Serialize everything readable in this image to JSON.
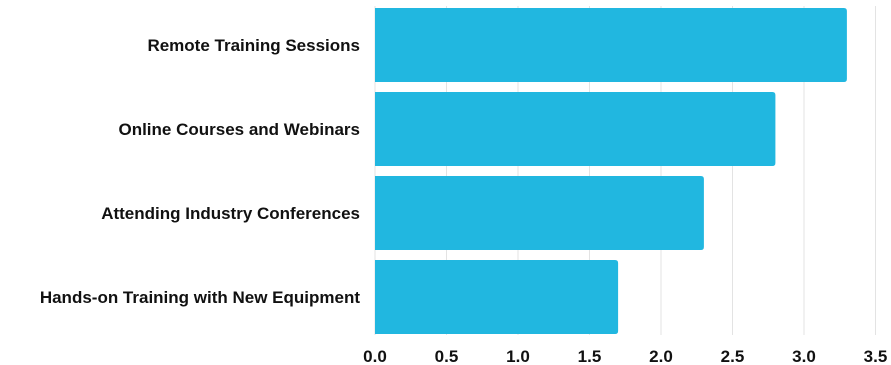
{
  "chart_data": {
    "type": "bar",
    "orientation": "horizontal",
    "categories": [
      "Remote Training Sessions",
      "Online Courses and Webinars",
      "Attending Industry Conferences",
      "Hands-on Training with New Equipment"
    ],
    "values": [
      3.3,
      2.8,
      2.3,
      1.7
    ],
    "xlim": [
      0,
      3.5
    ],
    "x_ticks": [
      "0.0",
      "0.5",
      "1.0",
      "1.5",
      "2.0",
      "2.5",
      "3.0",
      "3.5"
    ],
    "title": "",
    "xlabel": "",
    "ylabel": "",
    "grid": "vertical",
    "bar_color": "#21b7e0"
  }
}
